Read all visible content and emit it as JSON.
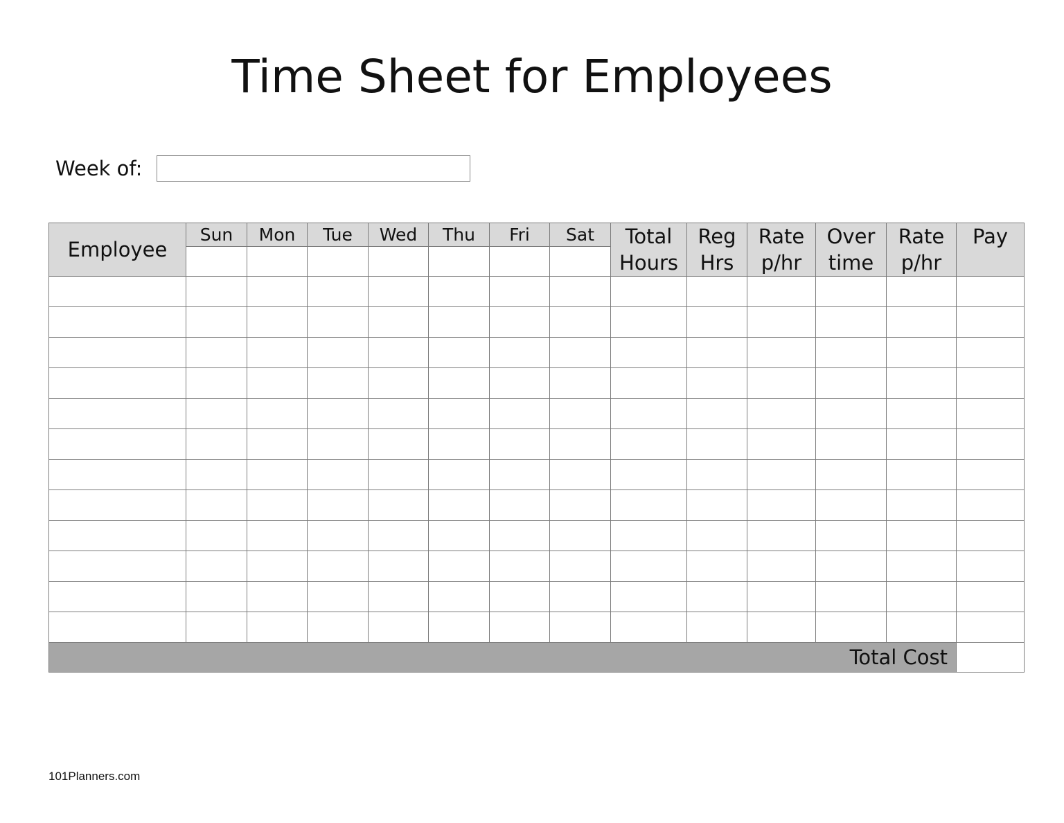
{
  "title": "Time Sheet for Employees",
  "week_of": {
    "label": "Week of:",
    "value": ""
  },
  "table": {
    "employee_header": "Employee",
    "days": [
      "Sun",
      "Mon",
      "Tue",
      "Wed",
      "Thu",
      "Fri",
      "Sat"
    ],
    "summary_headers": [
      [
        "Total",
        "Hours"
      ],
      [
        "Reg",
        "Hrs"
      ],
      [
        "Rate",
        "p/hr"
      ],
      [
        "Over",
        "time"
      ],
      [
        "Rate",
        "p/hr"
      ],
      [
        "Pay",
        ""
      ]
    ],
    "row_count": 12,
    "total_label": "Total Cost",
    "total_value": ""
  },
  "colors": {
    "header_fill": "#d9d9d9",
    "total_fill": "#a6a6a6",
    "border": "#7a7a7a"
  },
  "footer": "101Planners.com"
}
